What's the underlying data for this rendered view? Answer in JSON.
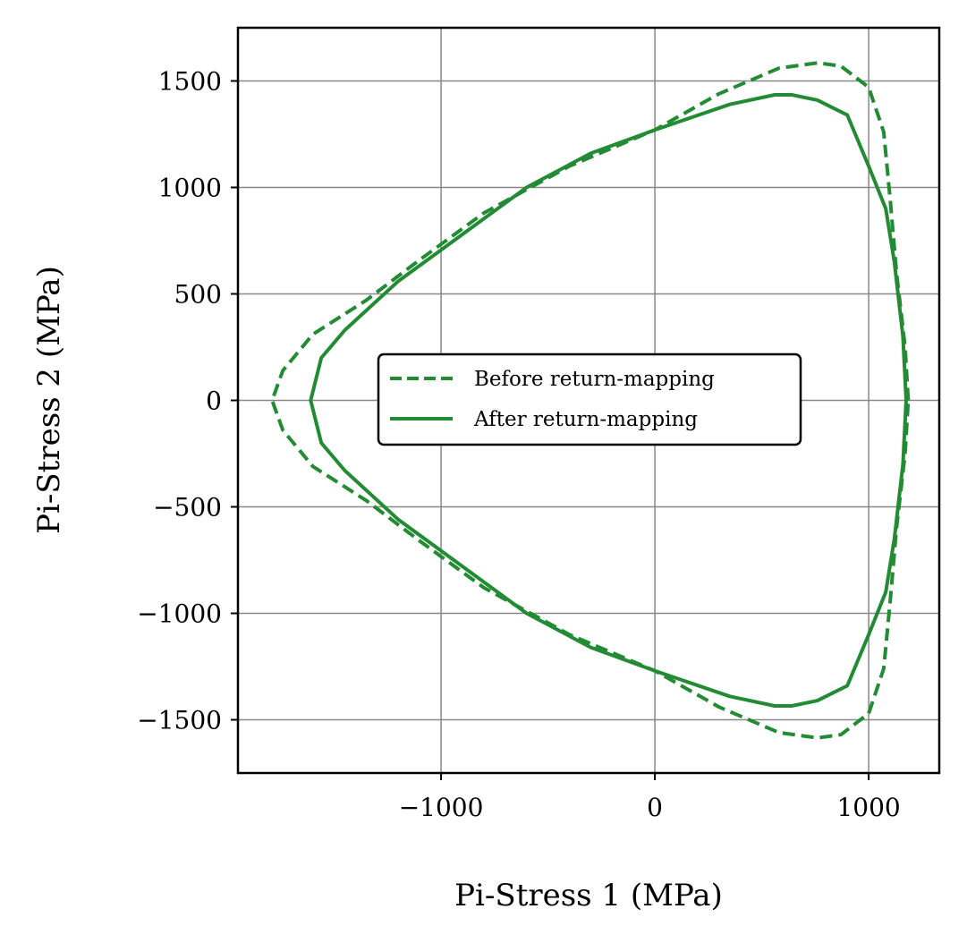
{
  "chart_data": {
    "type": "line",
    "xlabel": "Pi-Stress 1 (MPa)",
    "ylabel": "Pi-Stress 2 (MPa)",
    "xlim": [
      -1950,
      1330
    ],
    "ylim": [
      -1750,
      1750
    ],
    "grid": true,
    "xticks": [
      -1000,
      0,
      1000
    ],
    "xtick_labels": [
      "−1000",
      "0",
      "1000"
    ],
    "yticks": [
      1500,
      1000,
      500,
      0,
      -500,
      -1000,
      -1500
    ],
    "ytick_labels": [
      "1500",
      "1000",
      "500",
      "0",
      "−500",
      "−1000",
      "−1500"
    ],
    "legend_position": "center",
    "colors": {
      "series": "#228b34"
    },
    "series": [
      {
        "name": "Before return-mapping",
        "style": "dashed",
        "points": [
          [
            1185,
            0
          ],
          [
            1170,
            250
          ],
          [
            1130,
            600
          ],
          [
            1100,
            950
          ],
          [
            1070,
            1260
          ],
          [
            1000,
            1470
          ],
          [
            870,
            1570
          ],
          [
            760,
            1585
          ],
          [
            580,
            1560
          ],
          [
            300,
            1440
          ],
          [
            0,
            1270
          ],
          [
            -400,
            1100
          ],
          [
            -800,
            880
          ],
          [
            -1100,
            660
          ],
          [
            -1350,
            470
          ],
          [
            -1600,
            310
          ],
          [
            -1740,
            140
          ],
          [
            -1790,
            0
          ],
          [
            -1740,
            -140
          ],
          [
            -1600,
            -310
          ],
          [
            -1350,
            -470
          ],
          [
            -1100,
            -660
          ],
          [
            -800,
            -880
          ],
          [
            -400,
            -1100
          ],
          [
            0,
            -1270
          ],
          [
            300,
            -1440
          ],
          [
            580,
            -1560
          ],
          [
            760,
            -1585
          ],
          [
            870,
            -1570
          ],
          [
            1000,
            -1470
          ],
          [
            1070,
            -1260
          ],
          [
            1100,
            -950
          ],
          [
            1130,
            -600
          ],
          [
            1170,
            -250
          ],
          [
            1185,
            0
          ]
        ]
      },
      {
        "name": "After return-mapping",
        "style": "solid",
        "points": [
          [
            1175,
            0
          ],
          [
            1160,
            300
          ],
          [
            1120,
            650
          ],
          [
            1080,
            900
          ],
          [
            1000,
            1100
          ],
          [
            900,
            1340
          ],
          [
            760,
            1410
          ],
          [
            640,
            1435
          ],
          [
            560,
            1435
          ],
          [
            350,
            1390
          ],
          [
            0,
            1270
          ],
          [
            -300,
            1160
          ],
          [
            -600,
            1000
          ],
          [
            -900,
            780
          ],
          [
            -1200,
            560
          ],
          [
            -1450,
            330
          ],
          [
            -1560,
            200
          ],
          [
            -1610,
            0
          ],
          [
            -1560,
            -200
          ],
          [
            -1450,
            -330
          ],
          [
            -1200,
            -560
          ],
          [
            -900,
            -780
          ],
          [
            -600,
            -1000
          ],
          [
            -300,
            -1160
          ],
          [
            0,
            -1270
          ],
          [
            350,
            -1390
          ],
          [
            560,
            -1435
          ],
          [
            640,
            -1435
          ],
          [
            760,
            -1410
          ],
          [
            900,
            -1340
          ],
          [
            1000,
            -1100
          ],
          [
            1080,
            -900
          ],
          [
            1120,
            -650
          ],
          [
            1160,
            -300
          ],
          [
            1175,
            0
          ]
        ]
      }
    ]
  }
}
